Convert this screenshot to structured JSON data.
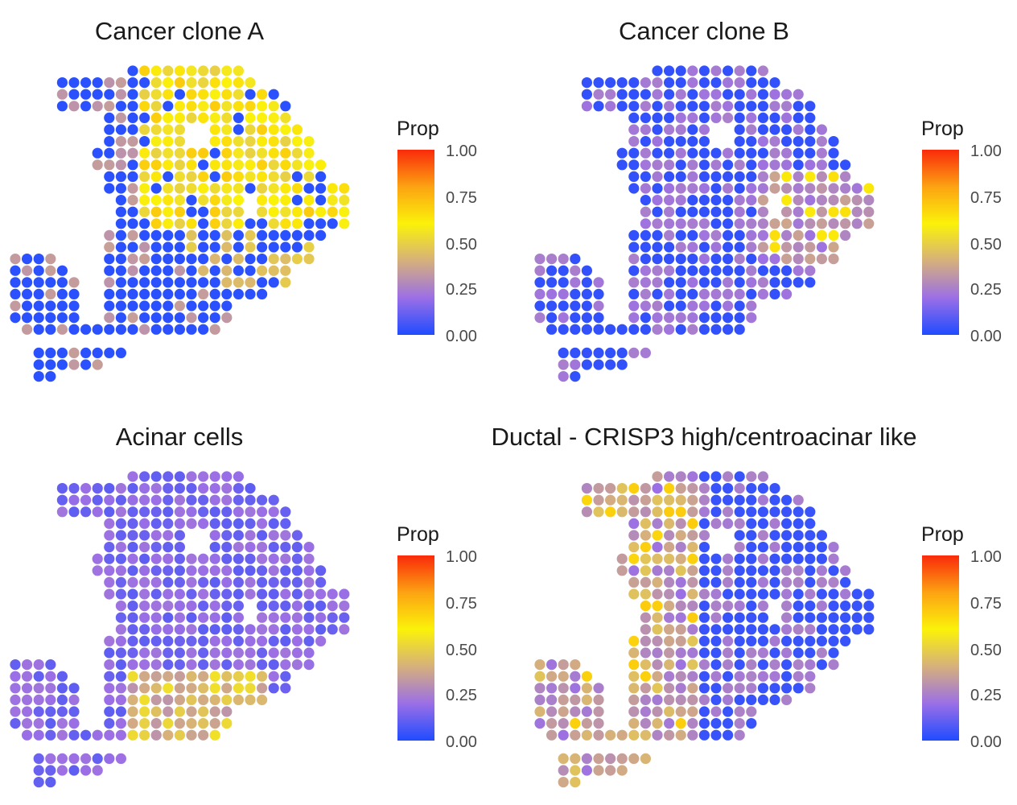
{
  "chart_data": {
    "type": "scatter",
    "kind": "spatial spot map",
    "colorscale": {
      "title": "Prop",
      "min": 0,
      "max": 1,
      "ticks": [
        "1.00",
        "0.75",
        "0.50",
        "0.25",
        "0.00"
      ],
      "stops": [
        "#1f4cff",
        "#9b6fe6",
        "#d6b07c",
        "#fbf20a",
        "#fca312",
        "#fa2a0a"
      ]
    },
    "panels": [
      {
        "title": "Cancer clone A",
        "pattern": "A"
      },
      {
        "title": "Cancer clone B",
        "pattern": "B"
      },
      {
        "title": "Acinar cells",
        "pattern": "C"
      },
      {
        "title": "Ductal - CRISP3 high/centroacinar like",
        "pattern": "D"
      }
    ]
  }
}
